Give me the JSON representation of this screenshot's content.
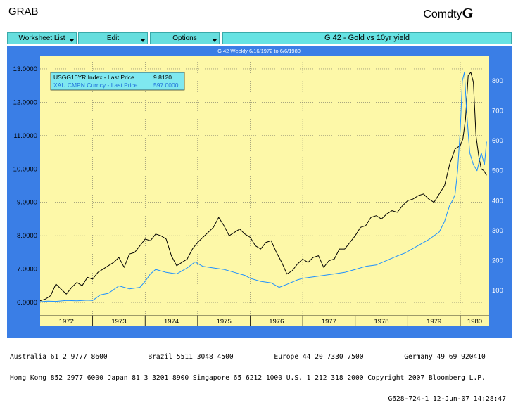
{
  "header": {
    "left": "GRAB",
    "right_prefix": "Comdty",
    "right_suffix": "G"
  },
  "toolbar": {
    "worksheet_label": "Worksheet List",
    "edit_label": "Edit",
    "options_label": "Options",
    "title": "G 42 - Gold vs 10yr yield"
  },
  "chart_data": {
    "type": "line",
    "subtitle": "G 42 Weekly 6/16/1972 to 6/6/1980",
    "legend": {
      "placement": "top-left",
      "entries": [
        {
          "label": "USGG10YR Index - Last Price",
          "value": "9.8120",
          "color": "#000000"
        },
        {
          "label": "XAU CMPN Curncy - Last Price",
          "value": "597.0000",
          "color": "#1e90ff"
        }
      ]
    },
    "left_axis": {
      "min": 5.6,
      "max": 13.4,
      "ticks": [
        "6.0000",
        "7.0000",
        "8.0000",
        "9.0000",
        "10.0000",
        "11.0000",
        "12.0000",
        "13.0000"
      ]
    },
    "right_axis": {
      "min": 15,
      "max": 885,
      "ticks": [
        "100",
        "200",
        "300",
        "400",
        "500",
        "600",
        "700",
        "800"
      ]
    },
    "x_range": [
      1972.0,
      1980.55
    ],
    "x_labels": [
      "1972",
      "1973",
      "1974",
      "1975",
      "1976",
      "1977",
      "1978",
      "1979",
      "1980"
    ],
    "grid": true,
    "series": [
      {
        "name": "USGG10YR Index - Last Price",
        "axis": "left",
        "color": "#000000",
        "x": [
          1972.0,
          1972.1,
          1972.2,
          1972.3,
          1972.4,
          1972.5,
          1972.6,
          1972.7,
          1972.8,
          1972.9,
          1973.0,
          1973.1,
          1973.2,
          1973.3,
          1973.4,
          1973.5,
          1973.6,
          1973.7,
          1973.8,
          1973.9,
          1974.0,
          1974.1,
          1974.2,
          1974.3,
          1974.4,
          1974.5,
          1974.6,
          1974.7,
          1974.8,
          1974.9,
          1975.0,
          1975.1,
          1975.2,
          1975.3,
          1975.4,
          1975.5,
          1975.6,
          1975.7,
          1975.8,
          1975.9,
          1976.0,
          1976.1,
          1976.2,
          1976.3,
          1976.4,
          1976.5,
          1976.6,
          1976.7,
          1976.8,
          1976.9,
          1977.0,
          1977.1,
          1977.2,
          1977.3,
          1977.4,
          1977.5,
          1977.6,
          1977.7,
          1977.8,
          1977.9,
          1978.0,
          1978.1,
          1978.2,
          1978.3,
          1978.4,
          1978.5,
          1978.6,
          1978.7,
          1978.8,
          1978.9,
          1979.0,
          1979.1,
          1979.2,
          1979.3,
          1979.4,
          1979.5,
          1979.6,
          1979.7,
          1979.8,
          1979.9,
          1980.0,
          1980.05,
          1980.1,
          1980.15,
          1980.2,
          1980.25,
          1980.3,
          1980.35,
          1980.4,
          1980.45,
          1980.5
        ],
        "values": [
          6.05,
          6.1,
          6.2,
          6.55,
          6.4,
          6.25,
          6.45,
          6.6,
          6.5,
          6.75,
          6.7,
          6.9,
          7.0,
          7.1,
          7.2,
          7.35,
          7.05,
          7.45,
          7.5,
          7.7,
          7.9,
          7.85,
          8.05,
          8.0,
          7.9,
          7.4,
          7.1,
          7.2,
          7.3,
          7.6,
          7.8,
          7.95,
          8.1,
          8.25,
          8.55,
          8.3,
          8.0,
          8.1,
          8.2,
          8.05,
          7.95,
          7.7,
          7.6,
          7.8,
          7.85,
          7.5,
          7.2,
          6.85,
          6.95,
          7.15,
          7.3,
          7.2,
          7.35,
          7.4,
          7.05,
          7.25,
          7.3,
          7.6,
          7.6,
          7.8,
          8.0,
          8.25,
          8.3,
          8.55,
          8.6,
          8.5,
          8.65,
          8.75,
          8.7,
          8.9,
          9.05,
          9.1,
          9.2,
          9.25,
          9.1,
          9.0,
          9.25,
          9.5,
          10.15,
          10.6,
          10.7,
          10.9,
          11.5,
          12.8,
          12.9,
          12.6,
          11.0,
          10.4,
          10.0,
          9.95,
          9.81
        ]
      },
      {
        "name": "XAU CMPN Curncy - Last Price",
        "axis": "right",
        "color": "#1e90ff",
        "x": [
          1972.0,
          1972.15,
          1972.3,
          1972.5,
          1972.7,
          1972.9,
          1973.0,
          1973.15,
          1973.3,
          1973.5,
          1973.7,
          1973.9,
          1974.0,
          1974.1,
          1974.2,
          1974.4,
          1974.6,
          1974.8,
          1974.95,
          1975.1,
          1975.3,
          1975.5,
          1975.7,
          1975.9,
          1976.0,
          1976.2,
          1976.4,
          1976.55,
          1976.7,
          1976.9,
          1977.0,
          1977.2,
          1977.4,
          1977.6,
          1977.8,
          1978.0,
          1978.2,
          1978.4,
          1978.6,
          1978.8,
          1978.95,
          1979.0,
          1979.2,
          1979.4,
          1979.6,
          1979.7,
          1979.8,
          1979.85,
          1979.9,
          1979.95,
          1980.0,
          1980.04,
          1980.08,
          1980.12,
          1980.18,
          1980.25,
          1980.32,
          1980.4,
          1980.46,
          1980.5
        ],
        "values": [
          62,
          64,
          63,
          66,
          65,
          67,
          66,
          85,
          90,
          115,
          105,
          110,
          130,
          155,
          170,
          160,
          155,
          175,
          195,
          180,
          175,
          170,
          160,
          150,
          140,
          130,
          125,
          110,
          120,
          135,
          140,
          145,
          150,
          155,
          160,
          170,
          180,
          185,
          200,
          215,
          225,
          230,
          250,
          270,
          295,
          330,
          385,
          400,
          420,
          500,
          640,
          800,
          830,
          700,
          560,
          520,
          500,
          560,
          520,
          597
        ]
      }
    ]
  },
  "footer": {
    "line1": "Australia 61 2 9777 8600          Brazil 5511 3048 4500          Europe 44 20 7330 7500          Germany 49 69 920410",
    "line2": "Hong Kong 852 2977 6000 Japan 81 3 3201 8900 Singapore 65 6212 1000 U.S. 1 212 318 2000 Copyright 2007 Bloomberg L.P.",
    "line3": "G628-724-1 12-Jun-07 14:28:47"
  }
}
